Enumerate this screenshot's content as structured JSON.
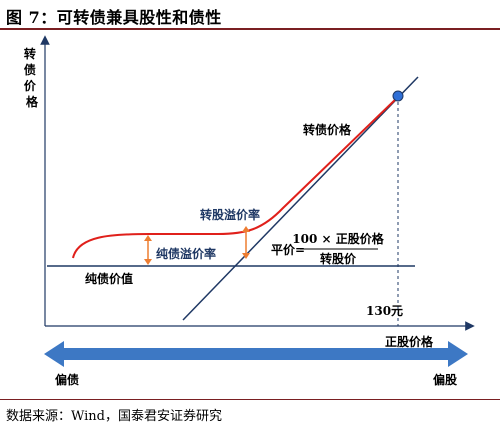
{
  "title": "图 7：可转债兼具股性和债性",
  "source": "数据来源：Wind，国泰君安证券研究",
  "diagram": {
    "y_axis_label": "转债价格",
    "x_axis_label": "正股价格",
    "labels": {
      "cb_price": "转债价格",
      "conversion_premium": "转股溢价率",
      "bond_premium": "纯债溢价率",
      "pure_bond_value": "纯债价值",
      "parity_prefix": "平价=",
      "parity_numerator": "100 × 正股价格",
      "parity_denominator": "转股价",
      "strike_marker": "130元"
    },
    "spectrum": {
      "left": "偏债",
      "right": "偏股"
    },
    "colors": {
      "curve": "#e0201b",
      "lines": "#1f3864",
      "arrows": "#ed7d31",
      "point": "#2f6fd6",
      "spectrum": "#3d78c4"
    }
  }
}
